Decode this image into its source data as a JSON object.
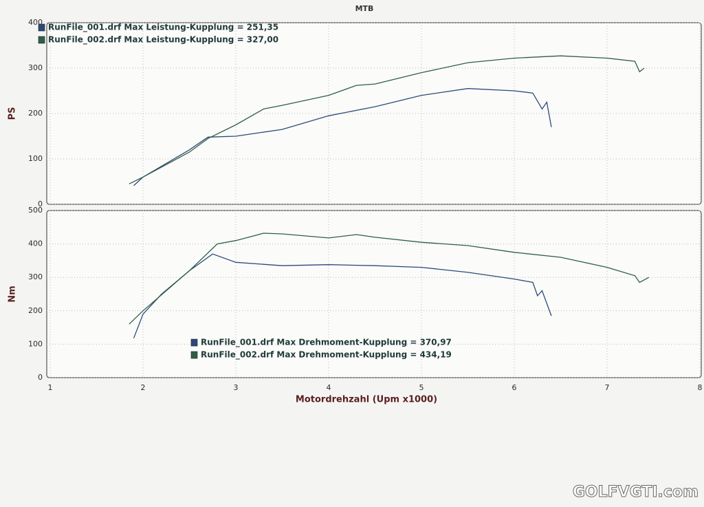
{
  "chart_data": [
    {
      "type": "line",
      "title": "MTB",
      "ylabel": "PS",
      "xlim": [
        1,
        8
      ],
      "xticks": [
        1,
        2,
        3,
        4,
        5,
        6,
        7,
        8
      ],
      "show_xtick_labels": false,
      "ylim": [
        0,
        400
      ],
      "yticks": [
        0,
        100,
        200,
        300,
        400
      ],
      "grid": true,
      "legend": "upper left",
      "series": [
        {
          "name": "RunFile_001.drf Max Leistung-Kupplung = 251,35",
          "color": "#2b4a78",
          "x": [
            1.9,
            2.0,
            2.5,
            2.7,
            3.0,
            3.5,
            4.0,
            4.5,
            5.0,
            5.5,
            6.0,
            6.2,
            6.3,
            6.35,
            6.4
          ],
          "values": [
            41,
            60,
            120,
            148,
            150,
            165,
            195,
            215,
            240,
            255,
            250,
            245,
            210,
            225,
            170
          ]
        },
        {
          "name": "RunFile_002.drf Max Leistung-Kupplung = 327,00",
          "color": "#2f5e48",
          "x": [
            1.85,
            2.0,
            2.5,
            2.7,
            3.0,
            3.3,
            3.5,
            4.0,
            4.3,
            4.5,
            5.0,
            5.5,
            6.0,
            6.5,
            7.0,
            7.3,
            7.35,
            7.4
          ],
          "values": [
            45,
            60,
            115,
            145,
            175,
            210,
            218,
            240,
            262,
            265,
            290,
            312,
            322,
            327,
            322,
            315,
            292,
            300
          ]
        }
      ]
    },
    {
      "type": "line",
      "ylabel": "Nm",
      "xlabel": "Motordrehzahl (Upm x1000)",
      "xlim": [
        1,
        8
      ],
      "xticks": [
        1,
        2,
        3,
        4,
        5,
        6,
        7,
        8
      ],
      "show_xtick_labels": true,
      "ylim": [
        0,
        500
      ],
      "yticks": [
        0,
        100,
        200,
        300,
        400,
        500
      ],
      "grid": true,
      "legend": "center",
      "series": [
        {
          "name": "RunFile_001.drf Max Drehmoment-Kupplung = 370,97",
          "color": "#2b4a78",
          "x": [
            1.9,
            2.0,
            2.2,
            2.5,
            2.75,
            3.0,
            3.5,
            4.0,
            4.5,
            5.0,
            5.5,
            6.0,
            6.2,
            6.25,
            6.3,
            6.4
          ],
          "values": [
            118,
            190,
            250,
            320,
            370,
            345,
            335,
            338,
            335,
            330,
            315,
            295,
            285,
            245,
            260,
            185
          ]
        },
        {
          "name": "RunFile_002.drf Max Drehmoment-Kupplung = 434,19",
          "color": "#2f5e48",
          "x": [
            1.85,
            2.0,
            2.5,
            2.8,
            3.0,
            3.3,
            3.5,
            4.0,
            4.3,
            4.5,
            5.0,
            5.5,
            6.0,
            6.5,
            7.0,
            7.3,
            7.35,
            7.45
          ],
          "values": [
            160,
            200,
            320,
            400,
            410,
            432,
            430,
            418,
            428,
            420,
            405,
            395,
            375,
            360,
            330,
            305,
            285,
            300
          ]
        }
      ]
    }
  ],
  "watermark": "GOLFVGTI.com"
}
